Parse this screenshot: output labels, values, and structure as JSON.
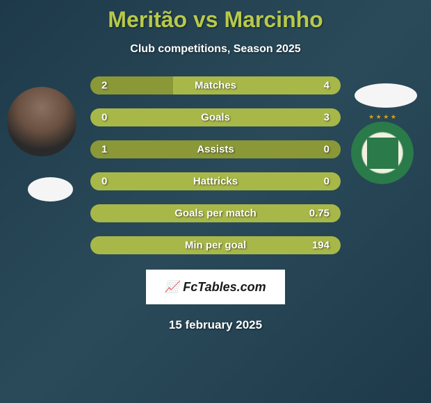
{
  "title": "Meritão vs Marcinho",
  "subtitle": "Club competitions, Season 2025",
  "footer_brand": "FcTables.com",
  "footer_date": "15 february 2025",
  "colors": {
    "bar_base": "#a8b848",
    "bar_dark": "#8a9838",
    "title_color": "#b8c94a",
    "text_white": "#ffffff"
  },
  "stats": [
    {
      "label": "Matches",
      "left_value": "2",
      "right_value": "4",
      "left_pct": 33,
      "right_pct": 67,
      "left_color": "#8a9838",
      "right_color": "#a8b848"
    },
    {
      "label": "Goals",
      "left_value": "0",
      "right_value": "3",
      "left_pct": 0,
      "right_pct": 100,
      "left_color": "#8a9838",
      "right_color": "#a8b848"
    },
    {
      "label": "Assists",
      "left_value": "1",
      "right_value": "0",
      "left_pct": 100,
      "right_pct": 0,
      "left_color": "#8a9838",
      "right_color": "#a8b848"
    },
    {
      "label": "Hattricks",
      "left_value": "0",
      "right_value": "0",
      "left_pct": 50,
      "right_pct": 50,
      "left_color": "#a8b848",
      "right_color": "#a8b848"
    },
    {
      "label": "Goals per match",
      "left_value": "",
      "right_value": "0.75",
      "left_pct": 0,
      "right_pct": 100,
      "left_color": "#8a9838",
      "right_color": "#a8b848"
    },
    {
      "label": "Min per goal",
      "left_value": "",
      "right_value": "194",
      "left_pct": 0,
      "right_pct": 100,
      "left_color": "#8a9838",
      "right_color": "#a8b848"
    }
  ]
}
